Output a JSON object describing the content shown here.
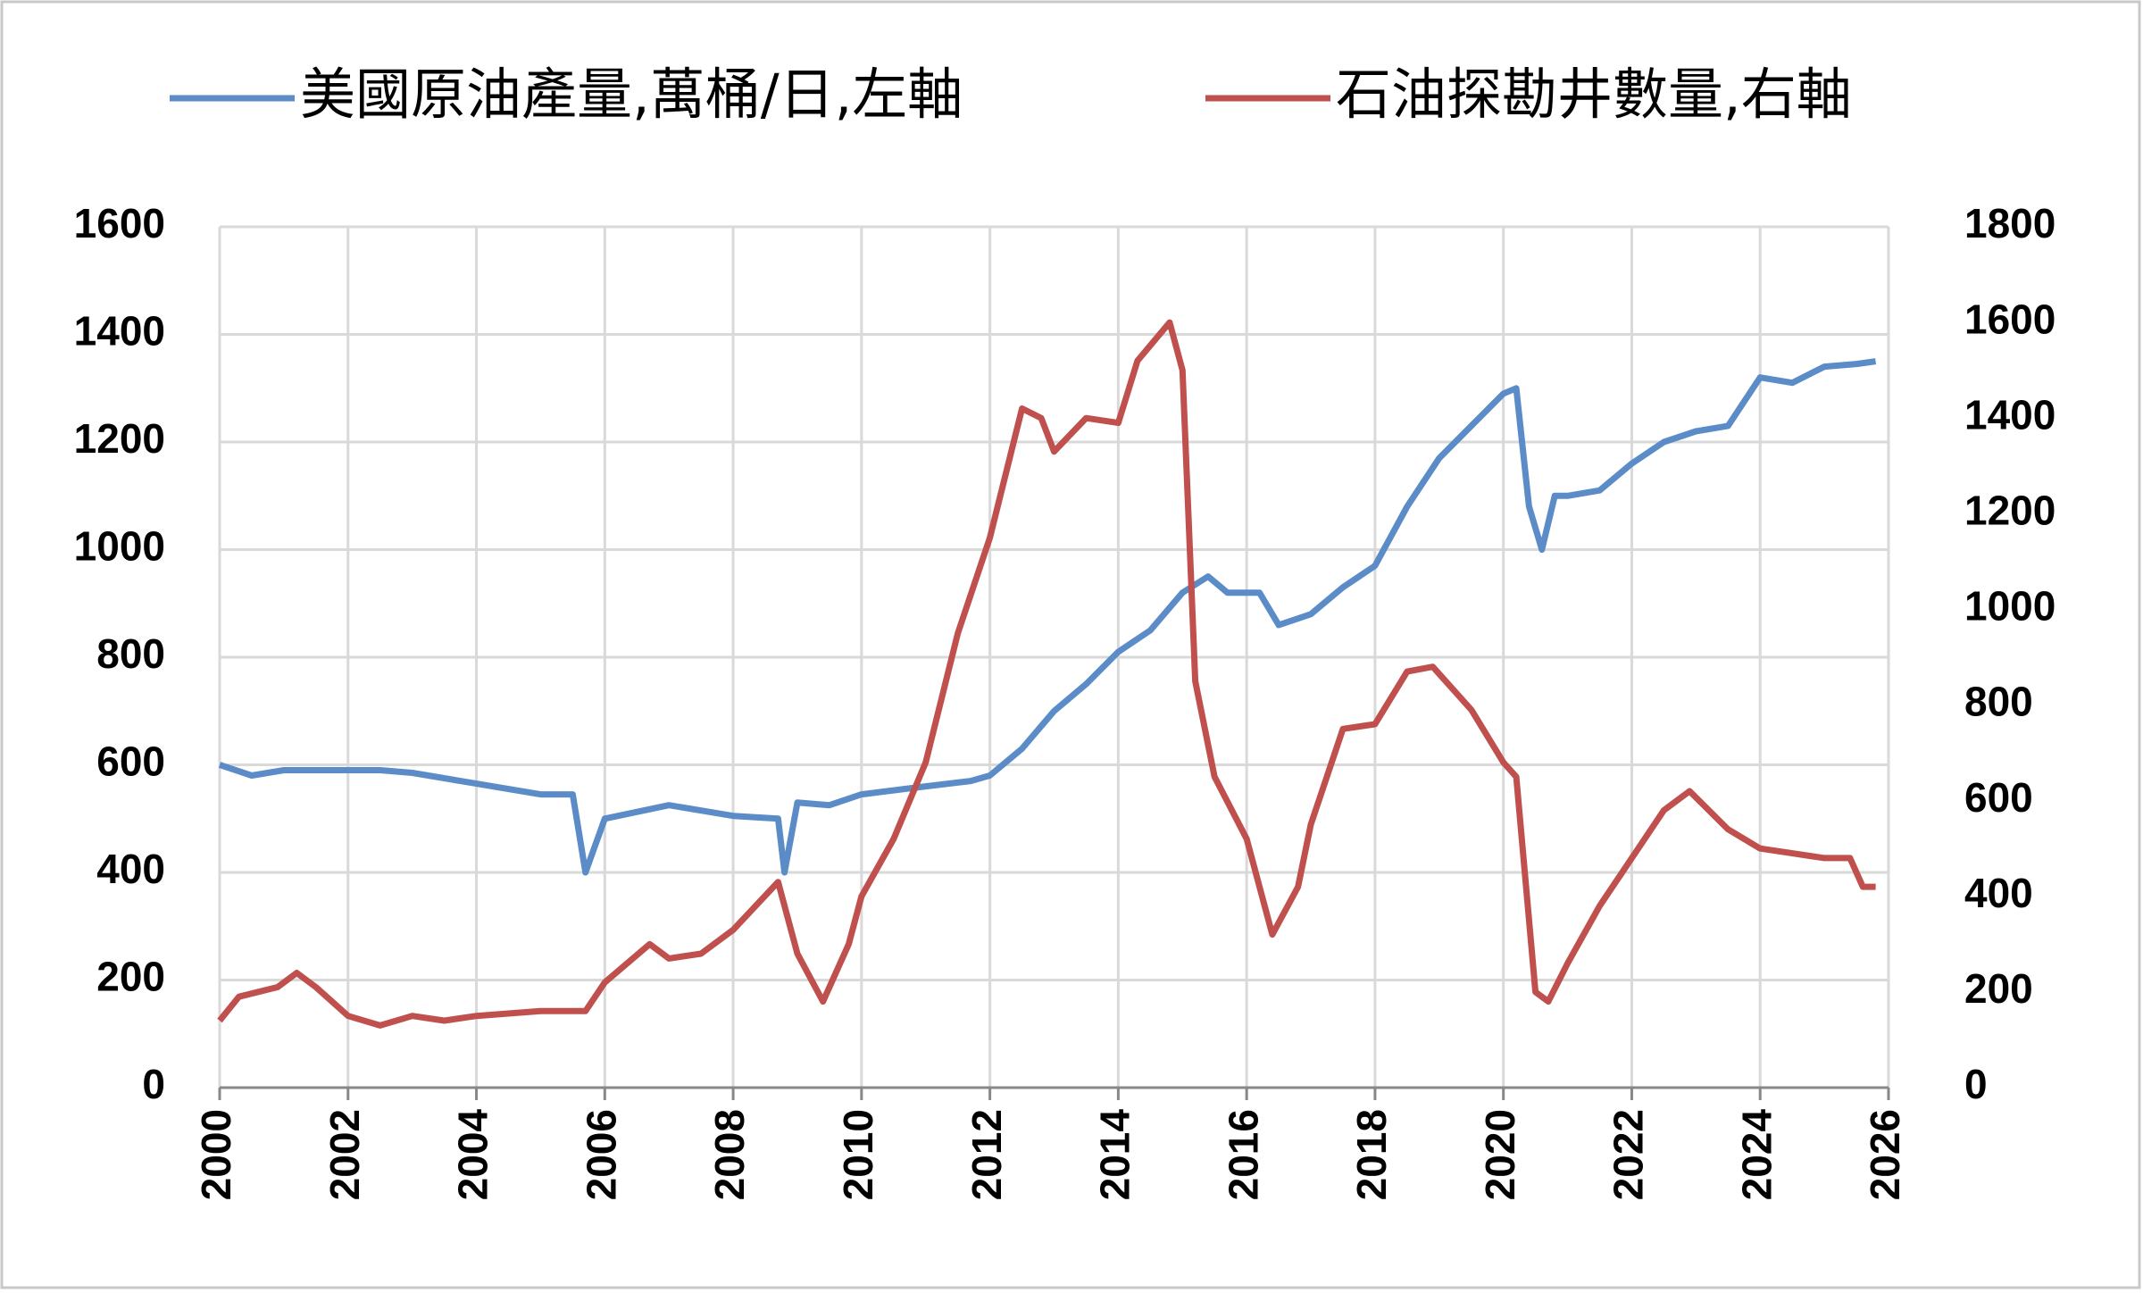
{
  "chart_data": {
    "type": "line",
    "xlim": [
      2000,
      2026
    ],
    "xticks": [
      2000,
      2002,
      2004,
      2006,
      2008,
      2010,
      2012,
      2014,
      2016,
      2018,
      2020,
      2022,
      2024,
      2026
    ],
    "ylim": [
      0,
      1600
    ],
    "yticks": [
      0,
      200,
      400,
      600,
      800,
      1000,
      1200,
      1400,
      1600
    ],
    "y2lim": [
      0,
      1800
    ],
    "y2ticks": [
      0,
      200,
      400,
      600,
      800,
      1000,
      1200,
      1400,
      1600,
      1800
    ],
    "grid": true,
    "legend": "top",
    "series": [
      {
        "name": "美國原油產量,萬桶/日,左軸",
        "color": "#5b8cc8",
        "x": [
          2000,
          2000.5,
          2001,
          2002,
          2002.5,
          2003,
          2004,
          2005,
          2005.5,
          2005.7,
          2006,
          2007,
          2008,
          2008.7,
          2008.8,
          2009,
          2009.5,
          2010,
          2011,
          2011.7,
          2012,
          2012.5,
          2013,
          2013.5,
          2014,
          2014.5,
          2015,
          2015.4,
          2015.7,
          2016.2,
          2016.5,
          2017,
          2017.5,
          2018,
          2018.5,
          2019,
          2019.5,
          2020,
          2020.2,
          2020.4,
          2020.6,
          2020.8,
          2021,
          2021.5,
          2022,
          2022.5,
          2023,
          2023.5,
          2024,
          2024.5,
          2025,
          2025.5,
          2025.8
        ],
        "values": [
          600,
          580,
          590,
          590,
          590,
          585,
          565,
          545,
          545,
          400,
          500,
          525,
          505,
          500,
          400,
          530,
          525,
          545,
          560,
          570,
          580,
          630,
          700,
          750,
          810,
          850,
          920,
          950,
          920,
          920,
          860,
          880,
          930,
          970,
          1080,
          1170,
          1230,
          1290,
          1300,
          1080,
          1000,
          1100,
          1100,
          1110,
          1160,
          1200,
          1220,
          1230,
          1320,
          1310,
          1340,
          1345,
          1350
        ]
      },
      {
        "name": "石油探勘井數量,右軸",
        "color": "#c0504d",
        "axis": "y2",
        "x": [
          2000,
          2000.3,
          2000.9,
          2001.2,
          2001.5,
          2002,
          2002.5,
          2003,
          2003.5,
          2004,
          2005,
          2005.7,
          2006,
          2006.7,
          2007,
          2007.5,
          2008,
          2008.7,
          2009,
          2009.4,
          2009.8,
          2010,
          2010.5,
          2011,
          2011.5,
          2012,
          2012.5,
          2012.8,
          2013,
          2013.5,
          2014,
          2014.3,
          2014.8,
          2015,
          2015.2,
          2015.5,
          2016,
          2016.4,
          2016.8,
          2017,
          2017.5,
          2018,
          2018.5,
          2018.9,
          2019.5,
          2020,
          2020.2,
          2020.5,
          2020.7,
          2021,
          2021.5,
          2022,
          2022.5,
          2022.9,
          2023.5,
          2024,
          2024.5,
          2025,
          2025.4,
          2025.6,
          2025.8
        ],
        "values": [
          140,
          190,
          210,
          240,
          210,
          150,
          130,
          150,
          140,
          150,
          160,
          160,
          220,
          300,
          270,
          280,
          330,
          430,
          280,
          180,
          300,
          400,
          520,
          680,
          950,
          1150,
          1420,
          1400,
          1330,
          1400,
          1390,
          1520,
          1600,
          1500,
          850,
          650,
          520,
          320,
          420,
          550,
          750,
          760,
          870,
          880,
          790,
          680,
          650,
          200,
          180,
          260,
          380,
          480,
          580,
          620,
          540,
          500,
          490,
          480,
          480,
          420,
          420
        ]
      }
    ]
  }
}
